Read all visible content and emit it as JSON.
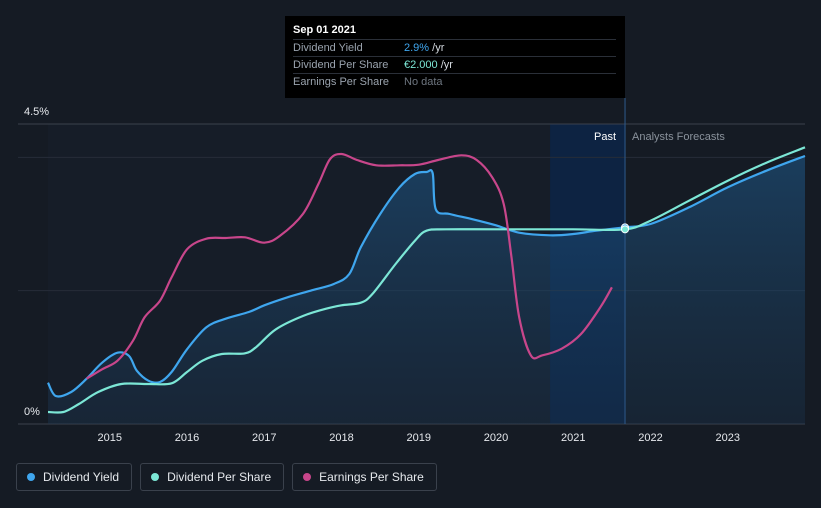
{
  "tooltip": {
    "date": "Sep 01 2021",
    "rows": [
      {
        "label": "Dividend Yield",
        "value": "2.9%",
        "unit": " /yr"
      },
      {
        "label": "Dividend Per Share",
        "value": "€2.000",
        "unit": " /yr"
      },
      {
        "label": "Earnings Per Share",
        "value": "No data",
        "unit": ""
      }
    ]
  },
  "region_labels": {
    "past": "Past",
    "forecast": "Analysts Forecasts"
  },
  "legend": [
    {
      "label": "Dividend Yield",
      "color": "#3fa6ee"
    },
    {
      "label": "Dividend Per Share",
      "color": "#7ce7d6"
    },
    {
      "label": "Earnings Per Share",
      "color": "#c8468b"
    }
  ],
  "chart_data": {
    "type": "line",
    "ylim": [
      0,
      4.5
    ],
    "y_tick_labels": [
      "4.5%",
      "0%"
    ],
    "x_tick_labels": [
      "2015",
      "2016",
      "2017",
      "2018",
      "2019",
      "2020",
      "2021",
      "2022",
      "2023"
    ],
    "x_range": [
      2014.2,
      2024.0
    ],
    "forecast_start": 2021.67,
    "highlight_range": [
      2020.7,
      2021.67
    ],
    "series": [
      {
        "name": "Dividend Yield",
        "color": "#3fa6ee",
        "axis": "percent",
        "filled": true,
        "points": [
          [
            2014.2,
            0.62
          ],
          [
            2014.3,
            0.42
          ],
          [
            2014.5,
            0.48
          ],
          [
            2014.7,
            0.68
          ],
          [
            2014.9,
            0.92
          ],
          [
            2015.1,
            1.07
          ],
          [
            2015.25,
            1.02
          ],
          [
            2015.35,
            0.8
          ],
          [
            2015.5,
            0.65
          ],
          [
            2015.65,
            0.63
          ],
          [
            2015.8,
            0.78
          ],
          [
            2016.0,
            1.12
          ],
          [
            2016.25,
            1.45
          ],
          [
            2016.5,
            1.58
          ],
          [
            2016.8,
            1.68
          ],
          [
            2017.0,
            1.78
          ],
          [
            2017.3,
            1.9
          ],
          [
            2017.6,
            2.0
          ],
          [
            2017.9,
            2.1
          ],
          [
            2018.1,
            2.25
          ],
          [
            2018.25,
            2.65
          ],
          [
            2018.5,
            3.15
          ],
          [
            2018.75,
            3.55
          ],
          [
            2018.95,
            3.75
          ],
          [
            2019.1,
            3.78
          ],
          [
            2019.18,
            3.76
          ],
          [
            2019.22,
            3.22
          ],
          [
            2019.4,
            3.15
          ],
          [
            2019.7,
            3.07
          ],
          [
            2020.0,
            2.98
          ],
          [
            2020.3,
            2.87
          ],
          [
            2020.7,
            2.83
          ],
          [
            2021.0,
            2.85
          ],
          [
            2021.3,
            2.9
          ],
          [
            2021.67,
            2.95
          ],
          [
            2022.0,
            3.0
          ],
          [
            2022.5,
            3.25
          ],
          [
            2023.0,
            3.55
          ],
          [
            2023.5,
            3.8
          ],
          [
            2024.0,
            4.02
          ]
        ]
      },
      {
        "name": "Dividend Per Share",
        "color": "#7ce7d6",
        "axis": "percent",
        "filled": false,
        "points": [
          [
            2014.2,
            0.18
          ],
          [
            2014.4,
            0.18
          ],
          [
            2014.6,
            0.3
          ],
          [
            2014.85,
            0.48
          ],
          [
            2015.15,
            0.6
          ],
          [
            2015.5,
            0.6
          ],
          [
            2015.8,
            0.61
          ],
          [
            2016.0,
            0.78
          ],
          [
            2016.2,
            0.95
          ],
          [
            2016.45,
            1.05
          ],
          [
            2016.75,
            1.06
          ],
          [
            2016.9,
            1.16
          ],
          [
            2017.15,
            1.42
          ],
          [
            2017.5,
            1.62
          ],
          [
            2017.8,
            1.73
          ],
          [
            2018.0,
            1.78
          ],
          [
            2018.25,
            1.82
          ],
          [
            2018.4,
            1.95
          ],
          [
            2018.7,
            2.4
          ],
          [
            2018.95,
            2.75
          ],
          [
            2019.1,
            2.9
          ],
          [
            2019.35,
            2.92
          ],
          [
            2020.0,
            2.92
          ],
          [
            2021.0,
            2.92
          ],
          [
            2021.67,
            2.92
          ],
          [
            2022.0,
            3.05
          ],
          [
            2022.5,
            3.35
          ],
          [
            2023.0,
            3.65
          ],
          [
            2023.5,
            3.92
          ],
          [
            2024.0,
            4.15
          ]
        ]
      },
      {
        "name": "Earnings Per Share",
        "color": "#c8468b",
        "axis": "relative",
        "filled": false,
        "points": [
          [
            2014.7,
            0.68
          ],
          [
            2014.9,
            0.82
          ],
          [
            2015.1,
            0.95
          ],
          [
            2015.3,
            1.25
          ],
          [
            2015.45,
            1.6
          ],
          [
            2015.65,
            1.85
          ],
          [
            2015.8,
            2.2
          ],
          [
            2016.0,
            2.62
          ],
          [
            2016.25,
            2.78
          ],
          [
            2016.5,
            2.79
          ],
          [
            2016.75,
            2.8
          ],
          [
            2017.0,
            2.72
          ],
          [
            2017.2,
            2.82
          ],
          [
            2017.5,
            3.15
          ],
          [
            2017.7,
            3.6
          ],
          [
            2017.85,
            3.97
          ],
          [
            2018.0,
            4.05
          ],
          [
            2018.2,
            3.96
          ],
          [
            2018.45,
            3.88
          ],
          [
            2018.75,
            3.88
          ],
          [
            2019.0,
            3.89
          ],
          [
            2019.25,
            3.96
          ],
          [
            2019.55,
            4.03
          ],
          [
            2019.75,
            3.96
          ],
          [
            2019.95,
            3.7
          ],
          [
            2020.1,
            3.3
          ],
          [
            2020.2,
            2.5
          ],
          [
            2020.3,
            1.6
          ],
          [
            2020.45,
            1.03
          ],
          [
            2020.6,
            1.03
          ],
          [
            2020.85,
            1.13
          ],
          [
            2021.1,
            1.35
          ],
          [
            2021.35,
            1.75
          ],
          [
            2021.5,
            2.05
          ]
        ]
      }
    ],
    "grid": true,
    "legend_position": "bottom-left"
  }
}
